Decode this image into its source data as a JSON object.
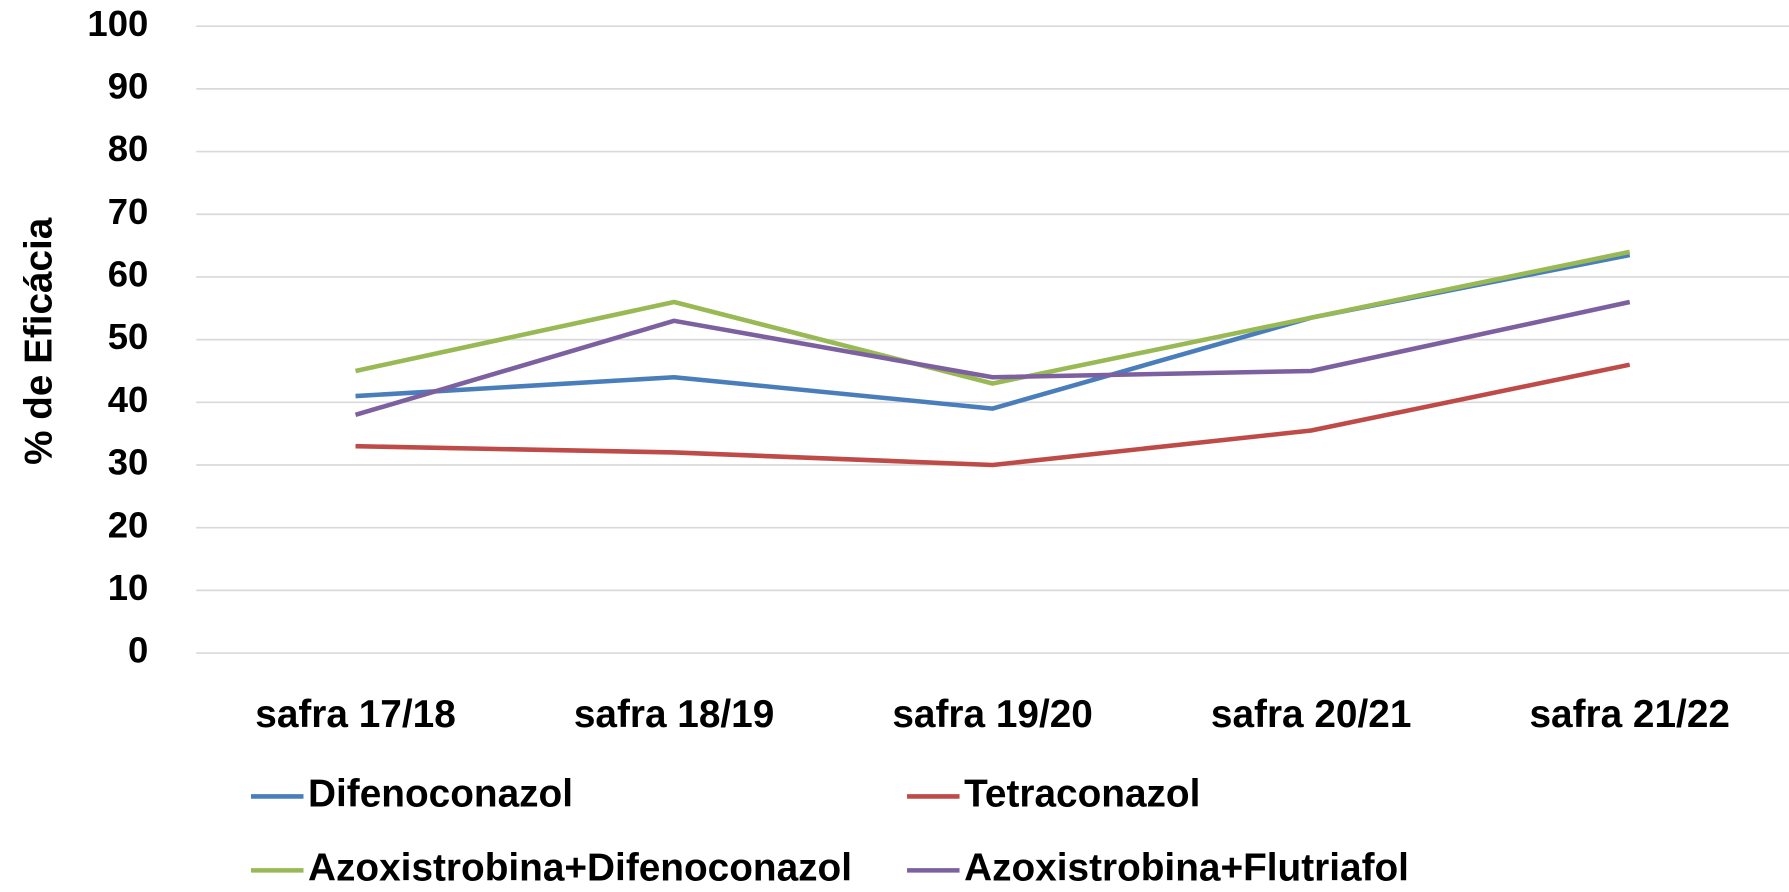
{
  "chart_data": {
    "type": "line",
    "y_label": "% de Eficácia",
    "categories": [
      "safra 17/18",
      "safra 18/19",
      "safra 19/20",
      "safra 20/21",
      "safra 21/22"
    ],
    "series": [
      {
        "name": "Difenoconazol",
        "color": "#4a7ebb",
        "values": [
          41,
          44,
          39,
          53.5,
          63.5
        ]
      },
      {
        "name": "Tetraconazol",
        "color": "#be4b48",
        "values": [
          33,
          32,
          30,
          35.5,
          46
        ]
      },
      {
        "name": "Azoxistrobina+Difenoconazol",
        "color": "#98b954",
        "values": [
          45,
          56,
          43,
          53.5,
          64
        ]
      },
      {
        "name": "Azoxistrobina+Flutriafol",
        "color": "#7d60a0",
        "values": [
          38,
          53,
          44,
          45,
          56
        ]
      }
    ],
    "ylim": [
      0,
      100
    ],
    "yticks": [
      0,
      10,
      20,
      30,
      40,
      50,
      60,
      70,
      80,
      90,
      100
    ],
    "grid": true,
    "legend": "bottom"
  }
}
